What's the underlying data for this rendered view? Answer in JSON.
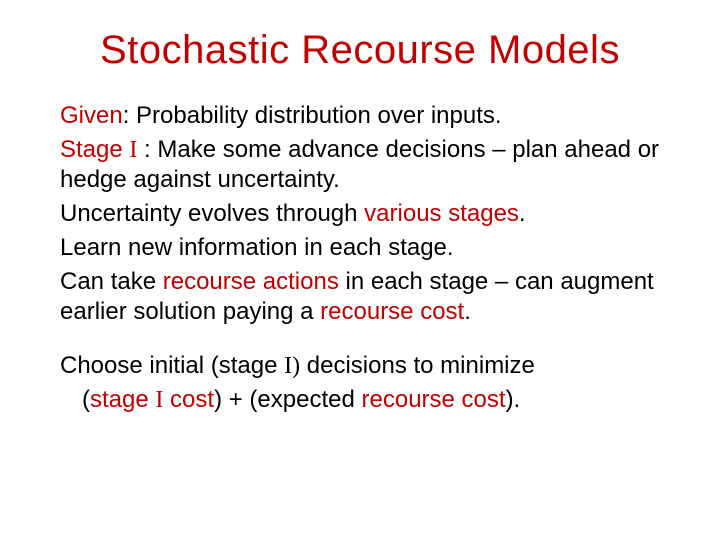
{
  "colors": {
    "title": "#c00000",
    "text": "#000000",
    "accent": "#c00000",
    "background": "#ffffff"
  },
  "typography": {
    "title_fontsize": 40,
    "body_fontsize": 24,
    "font_family": "Arial",
    "serif_family": "Times New Roman"
  },
  "title": "Stochastic Recourse Models",
  "lines": {
    "l1_a": "Given",
    "l1_b": ": Probability distribution over inputs.",
    "l2_a": "Stage ",
    "l2_roman": "I",
    "l2_b": " : Make some advance decisions – plan ahead    or hedge against uncertainty.",
    "l3_a": "Uncertainty evolves through ",
    "l3_b": "various stages",
    "l3_c": ".",
    "l4": "Learn new information in each stage.",
    "l5_a": "Can take ",
    "l5_b": "recourse actions",
    "l5_c": " in each stage – can augment earlier solution paying a ",
    "l5_d": "recourse cost",
    "l5_e": ".",
    "l6_a": "Choose initial (stage ",
    "l6_roman": "I)",
    "l6_b": " decisions to minimize",
    "l7_a": "(",
    "l7_b": "stage ",
    "l7_roman": "I",
    "l7_c": " cost",
    "l7_d": ") + (expected ",
    "l7_e": "recourse cost",
    "l7_f": ")."
  }
}
